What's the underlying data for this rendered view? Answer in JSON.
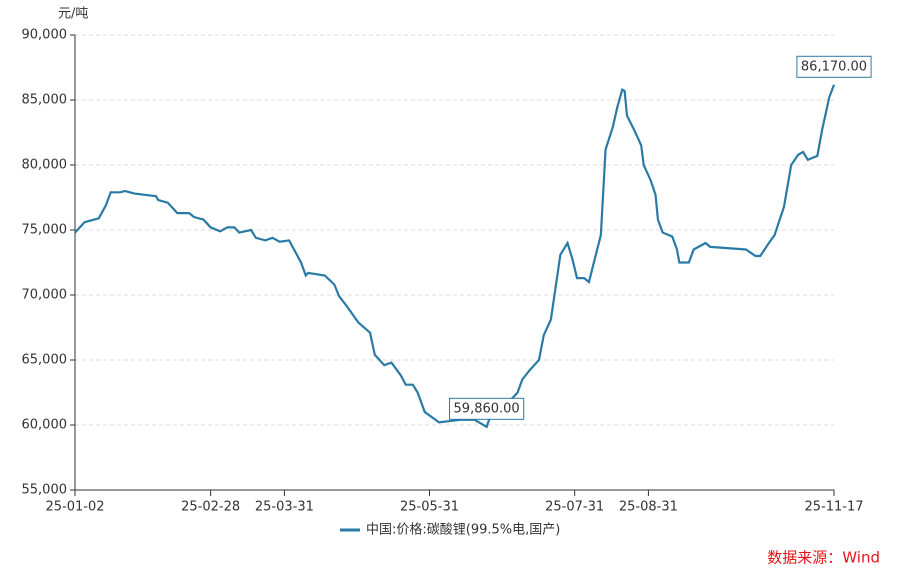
{
  "chart_data": {
    "type": "line",
    "y_label": "元/吨",
    "source": "数据来源：Wind",
    "xlim": [
      "25-01-02",
      "25-11-17"
    ],
    "xticks": [
      "25-01-02",
      "25-02-28",
      "25-03-31",
      "25-05-31",
      "25-07-31",
      "25-08-31",
      "25-11-17"
    ],
    "ylim": [
      55000,
      90000
    ],
    "yticks": [
      {
        "value": 55000,
        "label": "55,000"
      },
      {
        "value": 60000,
        "label": "60,000"
      },
      {
        "value": 65000,
        "label": "65,000"
      },
      {
        "value": 70000,
        "label": "70,000"
      },
      {
        "value": 75000,
        "label": "75,000"
      },
      {
        "value": 80000,
        "label": "80,000"
      },
      {
        "value": 85000,
        "label": "85,000"
      },
      {
        "value": 90000,
        "label": "90,000"
      }
    ],
    "grid": true,
    "legend": "bottom",
    "x": [
      "25-01-02",
      "25-01-06",
      "25-01-12",
      "25-01-15",
      "25-01-17",
      "25-01-21",
      "25-01-23",
      "25-01-27",
      "25-02-05",
      "25-02-06",
      "25-02-10",
      "25-02-12",
      "25-02-14",
      "25-02-19",
      "25-02-21",
      "25-02-25",
      "25-02-28",
      "25-03-04",
      "25-03-07",
      "25-03-10",
      "25-03-12",
      "25-03-17",
      "25-03-19",
      "25-03-23",
      "25-03-26",
      "25-03-29",
      "25-04-02",
      "25-04-07",
      "25-04-09",
      "25-04-10",
      "25-04-17",
      "25-04-21",
      "25-04-23",
      "25-04-26",
      "25-05-01",
      "25-05-06",
      "25-05-08",
      "25-05-12",
      "25-05-15",
      "25-05-19",
      "25-05-21",
      "25-05-24",
      "25-05-26",
      "25-05-29",
      "25-06-04",
      "25-06-13",
      "25-06-19",
      "25-06-24",
      "25-06-26",
      "25-07-04",
      "25-07-07",
      "25-07-09",
      "25-07-12",
      "25-07-16",
      "25-07-18",
      "25-07-21",
      "25-07-23",
      "25-07-25",
      "25-07-28",
      "25-07-30",
      "25-08-01",
      "25-08-04",
      "25-08-06",
      "25-08-11",
      "25-08-13",
      "25-08-16",
      "25-08-18",
      "25-08-20",
      "25-08-21",
      "25-08-22",
      "25-08-25",
      "25-08-28",
      "25-08-29",
      "25-09-01",
      "25-09-03",
      "25-09-04",
      "25-09-06",
      "25-09-10",
      "25-09-12",
      "25-09-13",
      "25-09-17",
      "25-09-19",
      "25-09-24",
      "25-09-26",
      "25-10-11",
      "25-10-15",
      "25-10-17",
      "25-10-21",
      "25-10-23",
      "25-10-27",
      "25-10-30",
      "25-11-02",
      "25-11-04",
      "25-11-06",
      "25-11-10",
      "25-11-12",
      "25-11-15",
      "25-11-17"
    ],
    "series": [
      {
        "name": "中国:价格:碳酸锂(99.5%电,国产)",
        "color": "#2a7aa6",
        "values": [
          74800,
          75600,
          75900,
          76900,
          77900,
          77900,
          78000,
          77800,
          77600,
          77300,
          77100,
          76700,
          76300,
          76300,
          76000,
          75800,
          75200,
          74900,
          75200,
          75200,
          74800,
          75000,
          74400,
          74200,
          74400,
          74100,
          74200,
          72500,
          71500,
          71700,
          71500,
          70800,
          69900,
          69200,
          67900,
          67100,
          65400,
          64600,
          64800,
          63800,
          63100,
          63100,
          62500,
          61000,
          60200,
          60400,
          60400,
          59860,
          60900,
          61900,
          62500,
          63500,
          64200,
          65000,
          66900,
          68100,
          70600,
          73100,
          74000,
          72800,
          71300,
          71300,
          71000,
          74600,
          81200,
          82900,
          84500,
          85800,
          85700,
          83800,
          82700,
          81500,
          80000,
          78800,
          77700,
          75800,
          74800,
          74500,
          73500,
          72500,
          72500,
          73500,
          74000,
          73700,
          73500,
          73000,
          73000,
          74100,
          74600,
          76800,
          80000,
          80800,
          81000,
          80400,
          80700,
          82700,
          85200,
          86170
        ],
        "value_labels": [
          null,
          null,
          null,
          null,
          null,
          null,
          null,
          null,
          null,
          null,
          null,
          null,
          null,
          null,
          null,
          null,
          null,
          null,
          null,
          null,
          null,
          null,
          null,
          null,
          null,
          null,
          null,
          null,
          null,
          null,
          null,
          null,
          null,
          null,
          null,
          null,
          null,
          null,
          null,
          null,
          null,
          null,
          null,
          null,
          null,
          null,
          null,
          "59,860.00",
          null,
          null,
          null,
          null,
          null,
          null,
          null,
          null,
          null,
          null,
          null,
          null,
          null,
          null,
          null,
          null,
          null,
          null,
          null,
          null,
          null,
          null,
          null,
          null,
          null,
          null,
          null,
          null,
          null,
          null,
          null,
          null,
          null,
          null,
          null,
          null,
          null,
          null,
          null,
          null,
          null,
          null,
          null,
          null,
          null,
          null,
          null,
          null,
          null,
          "86,170.00"
        ]
      }
    ]
  }
}
